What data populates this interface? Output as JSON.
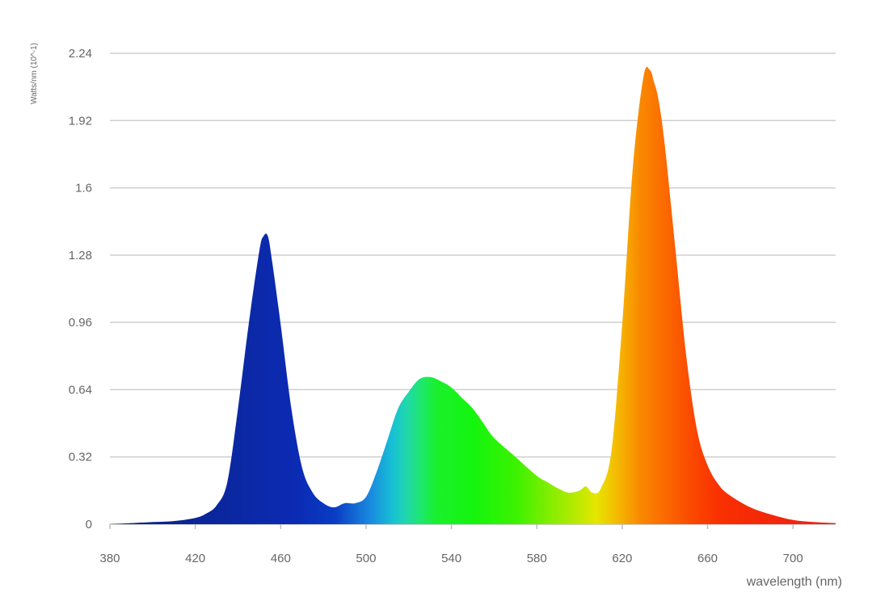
{
  "chart_data": {
    "type": "area",
    "title": "",
    "xlabel": "wavelength (nm)",
    "ylabel": "Watts/nm (10^-1)",
    "xlim": [
      380,
      720
    ],
    "ylim": [
      0,
      2.24
    ],
    "x_ticks": [
      380,
      420,
      460,
      500,
      540,
      580,
      620,
      660,
      700
    ],
    "y_ticks": [
      0,
      0.32,
      0.64,
      0.96,
      1.28,
      1.6,
      1.92,
      2.24
    ],
    "y_tick_labels": [
      "0",
      "0.32",
      "0.64",
      "0.96",
      "1.28",
      "1.6",
      "1.92",
      "2.24"
    ],
    "grid": "horizontal",
    "fill": "visible-spectrum gradient",
    "series": [
      {
        "x": [
          380,
          400,
          410,
          420,
          425,
          430,
          435,
          440,
          445,
          450,
          452,
          454,
          456,
          460,
          465,
          470,
          475,
          480,
          485,
          490,
          495,
          500,
          505,
          510,
          515,
          520,
          525,
          530,
          535,
          540,
          545,
          550,
          555,
          560,
          570,
          580,
          585,
          590,
          595,
          600,
          603,
          606,
          610,
          615,
          620,
          625,
          630,
          633,
          635,
          637,
          640,
          645,
          650,
          655,
          660,
          665,
          670,
          680,
          690,
          700,
          710,
          720
        ],
        "values": [
          0,
          0.01,
          0.015,
          0.03,
          0.05,
          0.09,
          0.2,
          0.55,
          0.95,
          1.3,
          1.37,
          1.37,
          1.25,
          0.95,
          0.55,
          0.27,
          0.15,
          0.1,
          0.08,
          0.1,
          0.1,
          0.13,
          0.25,
          0.4,
          0.55,
          0.63,
          0.69,
          0.7,
          0.68,
          0.65,
          0.6,
          0.55,
          0.48,
          0.41,
          0.32,
          0.23,
          0.2,
          0.17,
          0.15,
          0.16,
          0.18,
          0.15,
          0.17,
          0.35,
          0.95,
          1.7,
          2.13,
          2.16,
          2.1,
          2.02,
          1.8,
          1.3,
          0.8,
          0.45,
          0.28,
          0.19,
          0.14,
          0.08,
          0.045,
          0.02,
          0.01,
          0.005
        ]
      }
    ]
  }
}
